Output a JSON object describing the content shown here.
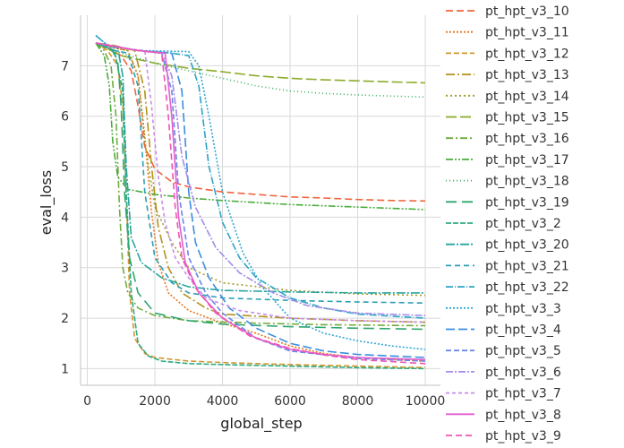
{
  "chart_data": {
    "type": "line",
    "title": "",
    "xlabel": "global_step",
    "ylabel": "eval_loss",
    "xlim": [
      -200,
      10450
    ],
    "ylim": [
      0.67,
      8.0
    ],
    "x_ticks": [
      0,
      2000,
      4000,
      6000,
      8000,
      10000
    ],
    "y_ticks": [
      1,
      2,
      3,
      4,
      5,
      6,
      7
    ],
    "grid": true,
    "legend_position": "right",
    "series": [
      {
        "name": "pt_hpt_v3_10",
        "color": "#f0643c",
        "dash": "8,4",
        "points": [
          [
            250,
            7.45
          ],
          [
            600,
            7.35
          ],
          [
            1000,
            7.2
          ],
          [
            1300,
            6.9
          ],
          [
            1500,
            6.2
          ],
          [
            1700,
            5.4
          ],
          [
            2000,
            4.95
          ],
          [
            2500,
            4.7
          ],
          [
            3000,
            4.6
          ],
          [
            4000,
            4.5
          ],
          [
            5000,
            4.45
          ],
          [
            6000,
            4.4
          ],
          [
            7000,
            4.38
          ],
          [
            8000,
            4.35
          ],
          [
            9000,
            4.33
          ],
          [
            10000,
            4.32
          ]
        ]
      },
      {
        "name": "pt_hpt_v3_11",
        "color": "#e8731b",
        "dash": "2,2",
        "points": [
          [
            250,
            7.45
          ],
          [
            800,
            7.35
          ],
          [
            1200,
            7.3
          ],
          [
            1500,
            6.8
          ],
          [
            1700,
            5.6
          ],
          [
            1900,
            4.1
          ],
          [
            2100,
            3.1
          ],
          [
            2400,
            2.5
          ],
          [
            3000,
            2.15
          ],
          [
            4000,
            1.9
          ],
          [
            5000,
            1.7
          ],
          [
            6000,
            1.45
          ],
          [
            7000,
            1.3
          ],
          [
            8000,
            1.22
          ],
          [
            9000,
            1.18
          ],
          [
            10000,
            1.15
          ]
        ]
      },
      {
        "name": "pt_hpt_v3_12",
        "color": "#d4952b",
        "dash": "6,3",
        "points": [
          [
            250,
            7.45
          ],
          [
            600,
            7.3
          ],
          [
            900,
            7.0
          ],
          [
            1050,
            6.2
          ],
          [
            1150,
            4.5
          ],
          [
            1250,
            2.5
          ],
          [
            1400,
            1.6
          ],
          [
            1700,
            1.3
          ],
          [
            2000,
            1.22
          ],
          [
            3000,
            1.15
          ],
          [
            4000,
            1.12
          ],
          [
            6000,
            1.08
          ],
          [
            8000,
            1.05
          ],
          [
            10000,
            1.02
          ]
        ]
      },
      {
        "name": "pt_hpt_v3_13",
        "color": "#b3921a",
        "dash": "10,3,2,3",
        "points": [
          [
            250,
            7.45
          ],
          [
            800,
            7.4
          ],
          [
            1400,
            7.3
          ],
          [
            1700,
            6.5
          ],
          [
            1900,
            5.0
          ],
          [
            2100,
            3.8
          ],
          [
            2400,
            3.0
          ],
          [
            2800,
            2.5
          ],
          [
            3500,
            2.2
          ],
          [
            4000,
            2.08
          ],
          [
            6000,
            2.0
          ],
          [
            8000,
            1.95
          ],
          [
            10000,
            1.92
          ]
        ]
      },
      {
        "name": "pt_hpt_v3_14",
        "color": "#a09a28",
        "dash": "2,3",
        "points": [
          [
            250,
            7.45
          ],
          [
            800,
            7.35
          ],
          [
            1200,
            7.3
          ],
          [
            1500,
            6.8
          ],
          [
            1700,
            5.5
          ],
          [
            2000,
            4.2
          ],
          [
            2500,
            3.5
          ],
          [
            3000,
            3.0
          ],
          [
            4000,
            2.7
          ],
          [
            6000,
            2.55
          ],
          [
            8000,
            2.48
          ],
          [
            10000,
            2.45
          ]
        ]
      },
      {
        "name": "pt_hpt_v3_15",
        "color": "#8bab2a",
        "dash": "12,4",
        "points": [
          [
            250,
            7.45
          ],
          [
            1000,
            7.2
          ],
          [
            2000,
            7.05
          ],
          [
            3000,
            6.95
          ],
          [
            4000,
            6.88
          ],
          [
            5000,
            6.8
          ],
          [
            6000,
            6.75
          ],
          [
            7000,
            6.72
          ],
          [
            8000,
            6.7
          ],
          [
            9000,
            6.68
          ],
          [
            10000,
            6.66
          ]
        ]
      },
      {
        "name": "pt_hpt_v3_16",
        "color": "#6fac3a",
        "dash": "8,3,2,3",
        "points": [
          [
            250,
            7.45
          ],
          [
            500,
            7.3
          ],
          [
            700,
            7.0
          ],
          [
            850,
            6.0
          ],
          [
            950,
            4.2
          ],
          [
            1050,
            3.0
          ],
          [
            1200,
            2.5
          ],
          [
            1500,
            2.2
          ],
          [
            2000,
            2.05
          ],
          [
            3000,
            1.95
          ],
          [
            5000,
            1.9
          ],
          [
            7000,
            1.87
          ],
          [
            10000,
            1.85
          ]
        ]
      },
      {
        "name": "pt_hpt_v3_17",
        "color": "#4aab3c",
        "dash": "8,2,2,2,2,2",
        "points": [
          [
            250,
            7.45
          ],
          [
            500,
            7.2
          ],
          [
            650,
            6.6
          ],
          [
            750,
            5.5
          ],
          [
            900,
            4.8
          ],
          [
            1200,
            4.55
          ],
          [
            2000,
            4.45
          ],
          [
            3000,
            4.38
          ],
          [
            4000,
            4.33
          ],
          [
            6000,
            4.25
          ],
          [
            8000,
            4.2
          ],
          [
            10000,
            4.15
          ]
        ]
      },
      {
        "name": "pt_hpt_v3_18",
        "color": "#3aad5c",
        "dash": "1,3",
        "points": [
          [
            250,
            7.45
          ],
          [
            1000,
            7.25
          ],
          [
            2000,
            7.05
          ],
          [
            3000,
            6.9
          ],
          [
            4000,
            6.75
          ],
          [
            5000,
            6.6
          ],
          [
            6000,
            6.5
          ],
          [
            7000,
            6.45
          ],
          [
            8000,
            6.42
          ],
          [
            9000,
            6.4
          ],
          [
            10000,
            6.38
          ]
        ]
      },
      {
        "name": "pt_hpt_v3_19",
        "color": "#2fa66e",
        "dash": "12,6",
        "points": [
          [
            250,
            7.45
          ],
          [
            700,
            7.35
          ],
          [
            900,
            7.1
          ],
          [
            1000,
            6.2
          ],
          [
            1100,
            4.5
          ],
          [
            1250,
            3.2
          ],
          [
            1500,
            2.5
          ],
          [
            2000,
            2.1
          ],
          [
            3000,
            1.95
          ],
          [
            4000,
            1.88
          ],
          [
            6000,
            1.83
          ],
          [
            8000,
            1.8
          ],
          [
            10000,
            1.78
          ]
        ]
      },
      {
        "name": "pt_hpt_v3_2",
        "color": "#2cab80",
        "dash": "6,2",
        "points": [
          [
            250,
            7.45
          ],
          [
            800,
            7.3
          ],
          [
            1050,
            6.5
          ],
          [
            1150,
            4.5
          ],
          [
            1300,
            2.5
          ],
          [
            1500,
            1.5
          ],
          [
            1800,
            1.25
          ],
          [
            2200,
            1.15
          ],
          [
            3000,
            1.1
          ],
          [
            4000,
            1.08
          ],
          [
            6000,
            1.05
          ],
          [
            8000,
            1.02
          ],
          [
            10000,
            1.0
          ]
        ]
      },
      {
        "name": "pt_hpt_v3_20",
        "color": "#28a5a0",
        "dash": "10,2,2,2",
        "points": [
          [
            250,
            7.45
          ],
          [
            900,
            7.35
          ],
          [
            1050,
            6.8
          ],
          [
            1150,
            5.0
          ],
          [
            1300,
            3.6
          ],
          [
            1600,
            3.1
          ],
          [
            2200,
            2.8
          ],
          [
            3000,
            2.62
          ],
          [
            4000,
            2.55
          ],
          [
            6000,
            2.52
          ],
          [
            8000,
            2.5
          ],
          [
            10000,
            2.5
          ]
        ]
      },
      {
        "name": "pt_hpt_v3_21",
        "color": "#2b9fb5",
        "dash": "6,4",
        "points": [
          [
            250,
            7.45
          ],
          [
            800,
            7.3
          ],
          [
            1200,
            7.25
          ],
          [
            1500,
            6.6
          ],
          [
            1700,
            4.5
          ],
          [
            2000,
            3.2
          ],
          [
            2500,
            2.7
          ],
          [
            3000,
            2.5
          ],
          [
            4000,
            2.4
          ],
          [
            6000,
            2.35
          ],
          [
            8000,
            2.32
          ],
          [
            10000,
            2.3
          ]
        ]
      },
      {
        "name": "pt_hpt_v3_22",
        "color": "#2ba3c6",
        "dash": "8,2,1,2",
        "points": [
          [
            250,
            7.6
          ],
          [
            600,
            7.4
          ],
          [
            1500,
            7.3
          ],
          [
            2500,
            7.25
          ],
          [
            3000,
            7.2
          ],
          [
            3300,
            6.6
          ],
          [
            3600,
            5.0
          ],
          [
            4000,
            3.9
          ],
          [
            4500,
            3.2
          ],
          [
            5000,
            2.8
          ],
          [
            6000,
            2.4
          ],
          [
            7000,
            2.2
          ],
          [
            8000,
            2.08
          ],
          [
            10000,
            2.0
          ]
        ]
      },
      {
        "name": "pt_hpt_v3_3",
        "color": "#30a6d4",
        "dash": "2,2",
        "points": [
          [
            250,
            7.6
          ],
          [
            600,
            7.4
          ],
          [
            1500,
            7.3
          ],
          [
            3000,
            7.28
          ],
          [
            3300,
            7.0
          ],
          [
            3600,
            6.0
          ],
          [
            4000,
            4.5
          ],
          [
            4600,
            3.3
          ],
          [
            5200,
            2.6
          ],
          [
            6000,
            2.0
          ],
          [
            7000,
            1.7
          ],
          [
            8000,
            1.55
          ],
          [
            9000,
            1.45
          ],
          [
            10000,
            1.38
          ]
        ]
      },
      {
        "name": "pt_hpt_v3_4",
        "color": "#3a8ee0",
        "dash": "10,4",
        "points": [
          [
            250,
            7.45
          ],
          [
            1500,
            7.3
          ],
          [
            2500,
            7.25
          ],
          [
            2800,
            6.5
          ],
          [
            3000,
            4.5
          ],
          [
            3200,
            3.5
          ],
          [
            3600,
            2.8
          ],
          [
            4200,
            2.2
          ],
          [
            5000,
            1.8
          ],
          [
            6000,
            1.5
          ],
          [
            7000,
            1.35
          ],
          [
            8000,
            1.28
          ],
          [
            10000,
            1.22
          ]
        ]
      },
      {
        "name": "pt_hpt_v3_5",
        "color": "#6a87e4",
        "dash": "6,3",
        "points": [
          [
            250,
            7.45
          ],
          [
            1500,
            7.3
          ],
          [
            2200,
            7.25
          ],
          [
            2500,
            6.5
          ],
          [
            2700,
            4.5
          ],
          [
            3000,
            3.2
          ],
          [
            3500,
            2.5
          ],
          [
            4000,
            2.1
          ],
          [
            5000,
            1.6
          ],
          [
            6000,
            1.35
          ],
          [
            8000,
            1.2
          ],
          [
            10000,
            1.15
          ]
        ]
      },
      {
        "name": "pt_hpt_v3_6",
        "color": "#a28ce8",
        "dash": "8,2,2,2",
        "points": [
          [
            250,
            7.45
          ],
          [
            1500,
            7.3
          ],
          [
            2200,
            7.25
          ],
          [
            2500,
            6.8
          ],
          [
            2800,
            5.2
          ],
          [
            3200,
            4.2
          ],
          [
            3800,
            3.4
          ],
          [
            4500,
            2.9
          ],
          [
            5500,
            2.5
          ],
          [
            6500,
            2.25
          ],
          [
            8000,
            2.1
          ],
          [
            10000,
            2.05
          ]
        ]
      },
      {
        "name": "pt_hpt_v3_7",
        "color": "#c98cea",
        "dash": "4,3",
        "points": [
          [
            250,
            7.45
          ],
          [
            1000,
            7.35
          ],
          [
            1700,
            7.3
          ],
          [
            1900,
            6.2
          ],
          [
            2100,
            4.8
          ],
          [
            2300,
            3.9
          ],
          [
            2600,
            3.2
          ],
          [
            3000,
            2.8
          ],
          [
            3500,
            2.4
          ],
          [
            4500,
            2.15
          ],
          [
            6000,
            2.0
          ],
          [
            8000,
            1.95
          ],
          [
            10000,
            1.92
          ]
        ]
      },
      {
        "name": "pt_hpt_v3_8",
        "color": "#e25fd0",
        "dash": "none",
        "points": [
          [
            250,
            7.45
          ],
          [
            1500,
            7.3
          ],
          [
            2300,
            7.25
          ],
          [
            2500,
            6.0
          ],
          [
            2700,
            4.0
          ],
          [
            2900,
            3.1
          ],
          [
            3300,
            2.5
          ],
          [
            4000,
            2.0
          ],
          [
            5000,
            1.6
          ],
          [
            6000,
            1.38
          ],
          [
            7000,
            1.28
          ],
          [
            8000,
            1.22
          ],
          [
            10000,
            1.18
          ]
        ]
      },
      {
        "name": "pt_hpt_v3_9",
        "color": "#ef55b4",
        "dash": "7,4",
        "points": [
          [
            250,
            7.45
          ],
          [
            1500,
            7.3
          ],
          [
            2200,
            7.25
          ],
          [
            2400,
            6.0
          ],
          [
            2600,
            4.2
          ],
          [
            2800,
            3.2
          ],
          [
            3200,
            2.6
          ],
          [
            3800,
            2.1
          ],
          [
            4800,
            1.65
          ],
          [
            6000,
            1.4
          ],
          [
            7000,
            1.27
          ],
          [
            8000,
            1.18
          ],
          [
            10000,
            1.1
          ]
        ]
      }
    ]
  }
}
